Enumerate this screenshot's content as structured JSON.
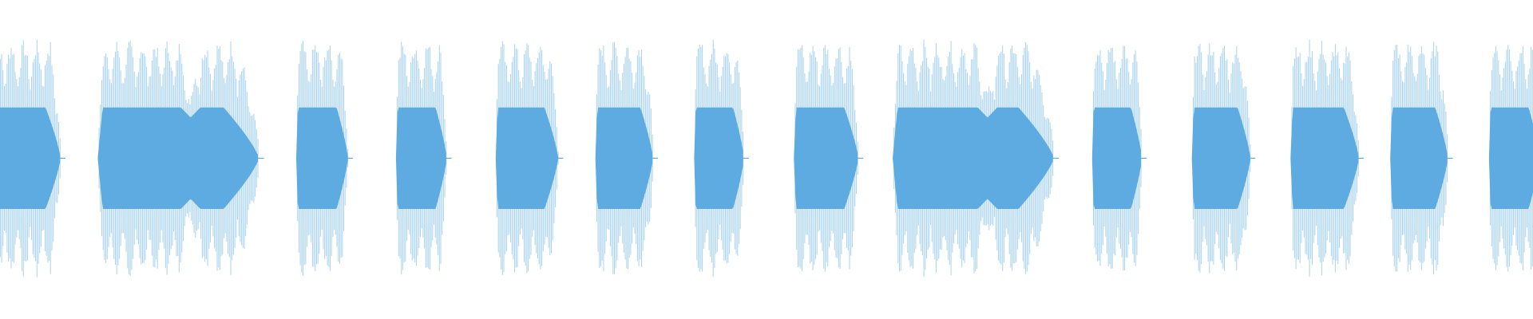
{
  "waveform": {
    "color": "#5dabe1",
    "light_color": "#a9d3f1"
  }
}
